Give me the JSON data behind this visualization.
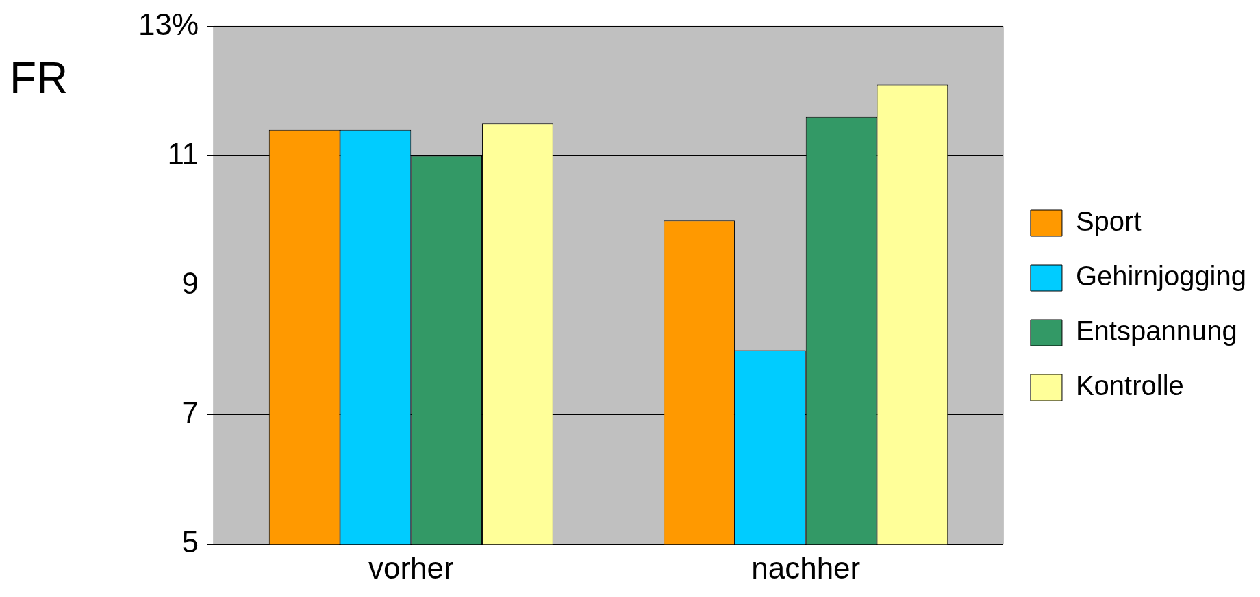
{
  "chart_data": {
    "type": "bar",
    "ylabel": "FR",
    "categories": [
      "vorher",
      "nachher"
    ],
    "series": [
      {
        "name": "Sport",
        "color": "#ff9900",
        "values": [
          11.4,
          10.0
        ]
      },
      {
        "name": "Gehirnjogging",
        "color": "#00ccff",
        "values": [
          11.4,
          8.0
        ]
      },
      {
        "name": "Entspannung",
        "color": "#339966",
        "values": [
          11.0,
          11.6
        ]
      },
      {
        "name": "Kontrolle",
        "color": "#ffff99",
        "values": [
          11.5,
          12.1
        ]
      }
    ],
    "ylim": [
      5,
      13
    ],
    "yticks": [
      5,
      7,
      9,
      11,
      {
        "value": 13,
        "label": "13%"
      }
    ],
    "grid": "y",
    "legend": "right"
  }
}
